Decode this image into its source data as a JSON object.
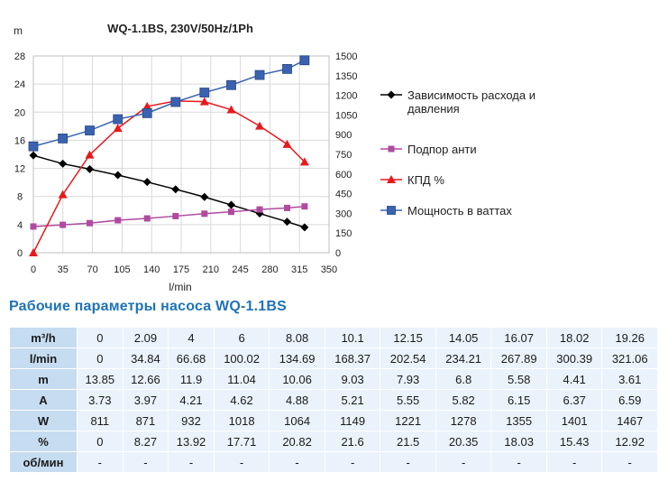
{
  "chart_data": {
    "type": "line",
    "title": "WQ-1.1BS, 230V/50Hz/1Ph",
    "xlabel": "l/min",
    "ylabel": "m",
    "xlim": [
      0,
      350
    ],
    "ylim": [
      0,
      28
    ],
    "y2lim": [
      0,
      1500
    ],
    "xticks": [
      "0",
      "35",
      "70",
      "105",
      "140",
      "175",
      "210",
      "245",
      "280",
      "315",
      "350"
    ],
    "yticks": [
      "0",
      "4",
      "8",
      "12",
      "16",
      "20",
      "24",
      "28"
    ],
    "y2ticks": [
      "0",
      "150",
      "300",
      "450",
      "600",
      "750",
      "900",
      "1050",
      "1200",
      "1350",
      "1500"
    ],
    "grid": true,
    "legend_position": "right",
    "x": [
      0,
      34.84,
      66.68,
      100.02,
      134.69,
      168.37,
      202.54,
      234.21,
      267.89,
      300.39,
      321.06
    ],
    "series": [
      {
        "name": "Зависимость расхода и давления",
        "axis": "left",
        "color": "#000000",
        "marker": "diamond",
        "values": [
          13.85,
          12.66,
          11.9,
          11.04,
          10.06,
          9.03,
          7.93,
          6.8,
          5.58,
          4.41,
          3.61
        ]
      },
      {
        "name": "Подпор анти",
        "axis": "left",
        "color": "#b04aa0",
        "marker": "square",
        "values": [
          3.73,
          3.97,
          4.21,
          4.62,
          4.88,
          5.21,
          5.55,
          5.82,
          6.15,
          6.37,
          6.59
        ]
      },
      {
        "name": "КПД %",
        "axis": "left",
        "color": "#e8191d",
        "marker": "triangle",
        "values": [
          0,
          8.27,
          13.92,
          17.71,
          20.82,
          21.6,
          21.5,
          20.35,
          18.03,
          15.43,
          12.92
        ]
      },
      {
        "name": "Мощность в ваттах",
        "axis": "right",
        "color": "#3a62b0",
        "marker": "square",
        "values": [
          811,
          871,
          932,
          1018,
          1064,
          1149,
          1221,
          1278,
          1355,
          1401,
          1467
        ]
      }
    ]
  },
  "legend": [
    {
      "label": "Зависимость расхода и давления",
      "color": "#000000",
      "marker": "diamond"
    },
    {
      "label": "Подпор анти",
      "color": "#b04aa0",
      "marker": "square"
    },
    {
      "label": "КПД %",
      "color": "#e8191d",
      "marker": "triangle"
    },
    {
      "label": "Мощность в ваттах",
      "color": "#3a62b0",
      "marker": "square"
    }
  ],
  "table": {
    "title": "Рабочие параметры насоса WQ-1.1BS",
    "rows": [
      {
        "label": "m³/h",
        "values": [
          "0",
          "2.09",
          "4",
          "6",
          "8.08",
          "10.1",
          "12.15",
          "14.05",
          "16.07",
          "18.02",
          "19.26"
        ]
      },
      {
        "label": "l/min",
        "values": [
          "0",
          "34.84",
          "66.68",
          "100.02",
          "134.69",
          "168.37",
          "202.54",
          "234.21",
          "267.89",
          "300.39",
          "321.06"
        ]
      },
      {
        "label": "m",
        "values": [
          "13.85",
          "12.66",
          "11.9",
          "11.04",
          "10.06",
          "9.03",
          "7.93",
          "6.8",
          "5.58",
          "4.41",
          "3.61"
        ]
      },
      {
        "label": "A",
        "values": [
          "3.73",
          "3.97",
          "4.21",
          "4.62",
          "4.88",
          "5.21",
          "5.55",
          "5.82",
          "6.15",
          "6.37",
          "6.59"
        ]
      },
      {
        "label": "W",
        "values": [
          "811",
          "871",
          "932",
          "1018",
          "1064",
          "1149",
          "1221",
          "1278",
          "1355",
          "1401",
          "1467"
        ]
      },
      {
        "label": "%",
        "values": [
          "0",
          "8.27",
          "13.92",
          "17.71",
          "20.82",
          "21.6",
          "21.5",
          "20.35",
          "18.03",
          "15.43",
          "12.92"
        ]
      },
      {
        "label": "об/мин",
        "values": [
          "-",
          "-",
          "-",
          "-",
          "-",
          "-",
          "-",
          "-",
          "-",
          "-",
          "-"
        ]
      }
    ]
  }
}
